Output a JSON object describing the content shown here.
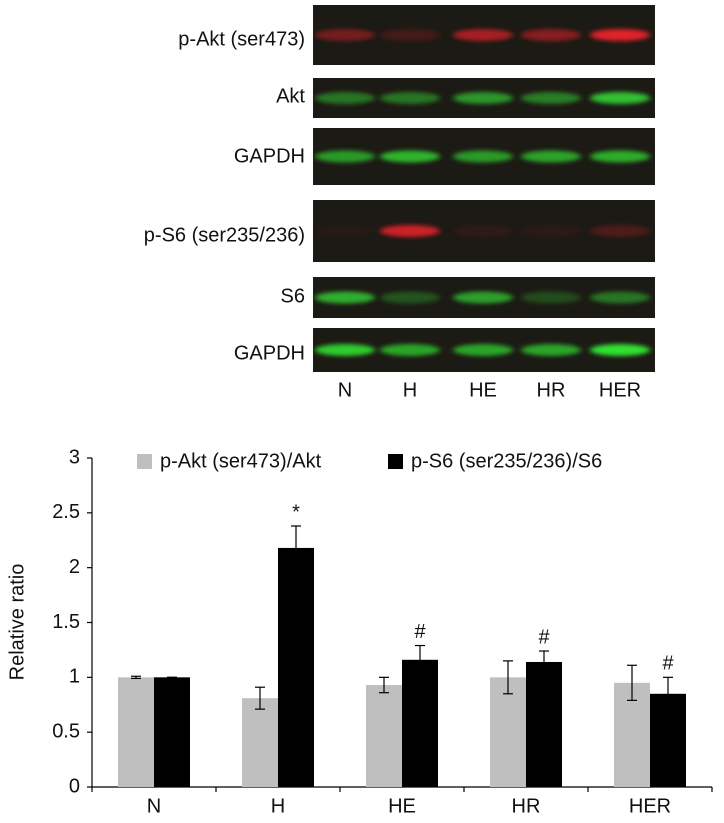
{
  "blots": {
    "rows": [
      "p-Akt (ser473)",
      "Akt",
      "GAPDH",
      "p-S6 (ser235/236)",
      "S6",
      "GAPDH"
    ],
    "lanes": [
      "N",
      "H",
      "HE",
      "HR",
      "HER"
    ]
  },
  "chart_data": {
    "type": "bar",
    "ylabel": "Relative ratio",
    "categories": [
      "N",
      "H",
      "HE",
      "HR",
      "HER"
    ],
    "series": [
      {
        "name": "p-Akt (ser473)/Akt",
        "color": "#bfbfbf",
        "values": [
          1.0,
          0.81,
          0.93,
          1.0,
          0.95
        ],
        "errors": [
          0.01,
          0.1,
          0.07,
          0.15,
          0.16
        ]
      },
      {
        "name": "p-S6 (ser235/236)/S6",
        "color": "#000000",
        "values": [
          1.0,
          2.18,
          1.16,
          1.14,
          0.85
        ],
        "errors": [
          0.0,
          0.2,
          0.13,
          0.1,
          0.15
        ],
        "significance": [
          null,
          "*",
          "#",
          "#",
          "#"
        ]
      }
    ],
    "ylim": [
      0,
      3
    ],
    "yticks": [
      0,
      0.5,
      1,
      1.5,
      2,
      2.5,
      3
    ],
    "grid": false,
    "legend": "top"
  }
}
